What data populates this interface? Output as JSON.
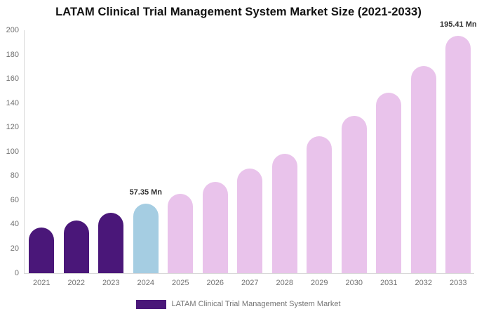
{
  "title": "LATAM Clinical Trial Management System Market Size (2021-2033)",
  "legend": {
    "label": "LATAM Clinical Trial Management System Market",
    "swatch_color": "#4A1779"
  },
  "chart_data": {
    "type": "bar",
    "title": "LATAM Clinical Trial Management System Market Size (2021-2033)",
    "xlabel": "",
    "ylabel": "",
    "unit": "Mn",
    "categories": [
      "2021",
      "2022",
      "2023",
      "2024",
      "2025",
      "2026",
      "2027",
      "2028",
      "2029",
      "2030",
      "2031",
      "2032",
      "2033"
    ],
    "values": [
      37.5,
      43.5,
      50.0,
      57.35,
      65.5,
      75.0,
      86.0,
      98.5,
      113.0,
      129.5,
      148.5,
      170.5,
      195.41
    ],
    "colors": [
      "#4A1779",
      "#4A1779",
      "#4A1779",
      "#A5CDE2",
      "#E9C3EB",
      "#E9C3EB",
      "#E9C3EB",
      "#E9C3EB",
      "#E9C3EB",
      "#E9C3EB",
      "#E9C3EB",
      "#E9C3EB",
      "#E9C3EB"
    ],
    "annotations": [
      {
        "index": 3,
        "text": "57.35 Mn"
      },
      {
        "index": 12,
        "text": "195.41 Mn"
      }
    ],
    "ylim": [
      0,
      200
    ],
    "y_ticks": [
      0,
      20,
      40,
      60,
      80,
      100,
      120,
      140,
      160,
      180,
      200
    ],
    "grid": false,
    "legend_entries": [
      "LATAM Clinical Trial Management System Market"
    ],
    "legend_position": "bottom",
    "bar_shape": "rounded-top"
  }
}
